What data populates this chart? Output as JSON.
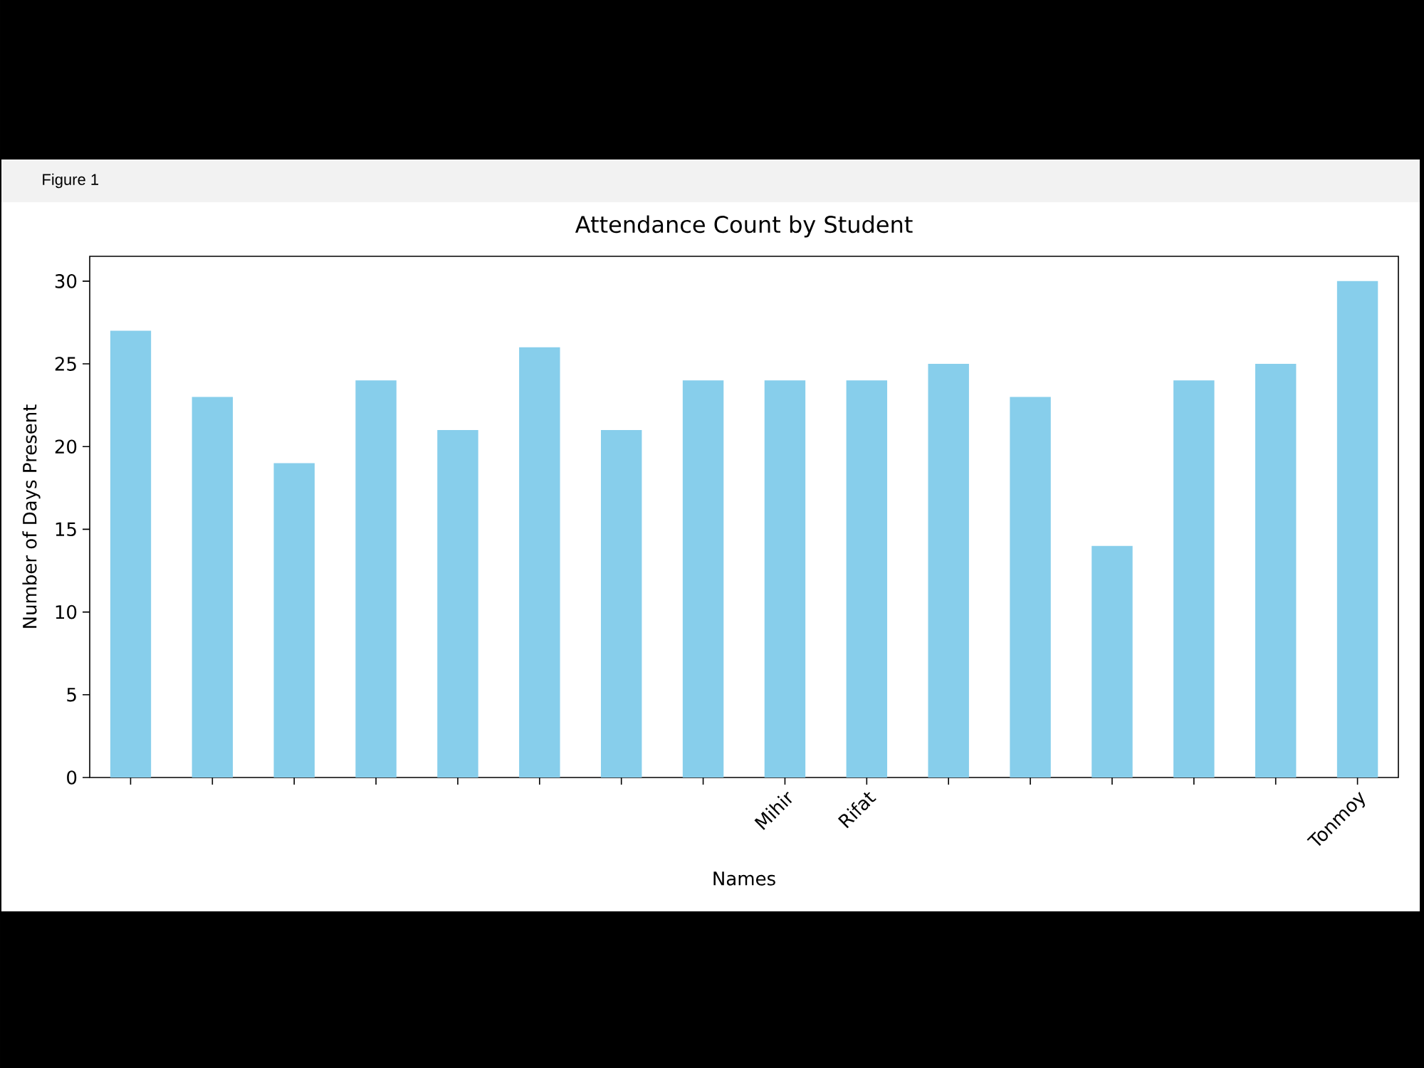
{
  "chart_data": {
    "type": "bar",
    "title": "Attendance Count by Student",
    "xlabel": "Names",
    "ylabel": "Number of Days Present",
    "annotations": [
      "Figure 1"
    ],
    "categories": [
      null,
      null,
      null,
      null,
      null,
      null,
      null,
      null,
      "Mihir",
      "Rifat",
      null,
      null,
      null,
      null,
      null,
      "Tonmoy"
    ],
    "values": [
      27,
      23,
      19,
      24,
      21,
      26,
      21,
      24,
      24,
      24,
      25,
      23,
      14,
      24,
      25,
      30
    ],
    "color": "#87ceeb",
    "ylim": [
      0,
      31.5
    ],
    "yticks": [
      0,
      5,
      10,
      15,
      20,
      25,
      30
    ]
  }
}
